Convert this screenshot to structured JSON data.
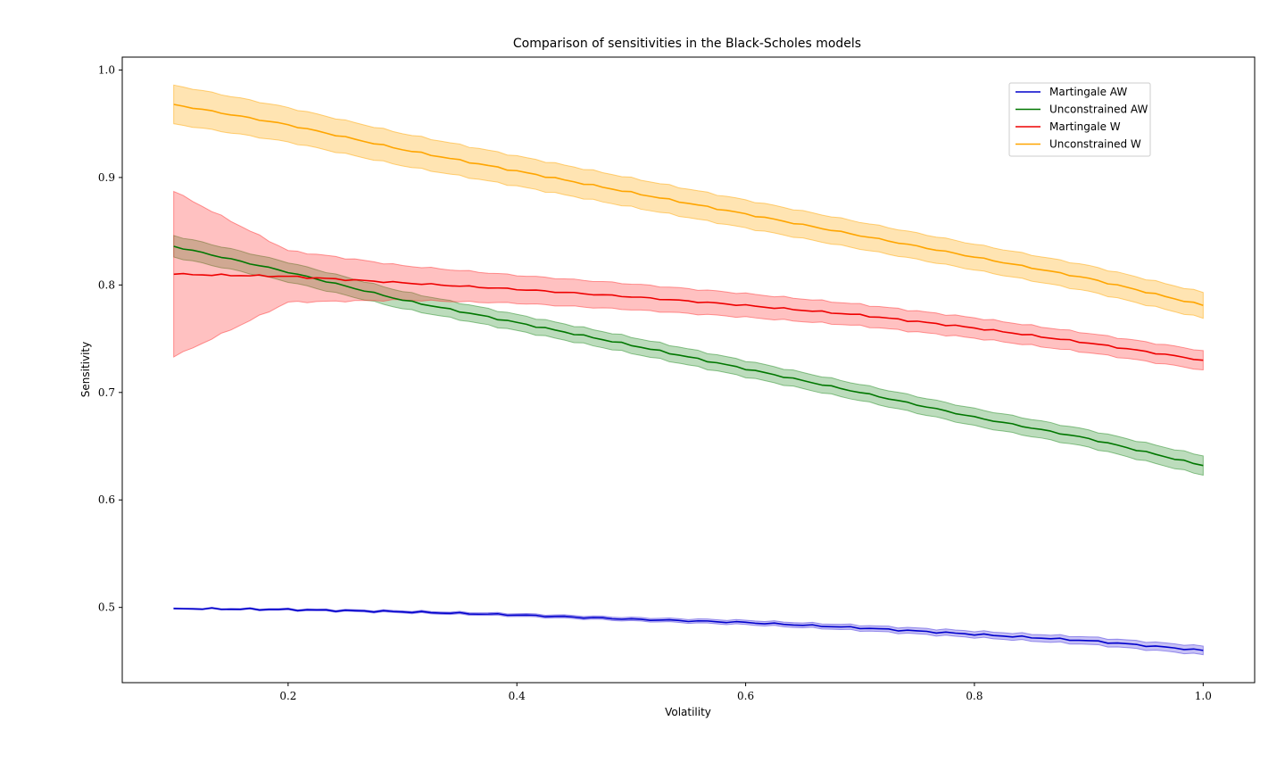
{
  "chart_data": {
    "type": "line",
    "title": "Comparison of sensitivities in the Black-Scholes models",
    "xlabel": "Volatility",
    "ylabel": "Sensitivity",
    "xlim": [
      0.055,
      1.045
    ],
    "ylim": [
      0.43,
      1.012
    ],
    "xticks": [
      "0.2",
      "0.4",
      "0.6",
      "0.8",
      "1.0"
    ],
    "yticks": [
      "0.5",
      "0.6",
      "0.7",
      "0.8",
      "0.9",
      "1.0"
    ],
    "grid": false,
    "legend_position": "top-right",
    "x": [
      0.1,
      0.2,
      0.3,
      0.4,
      0.5,
      0.6,
      0.7,
      0.8,
      0.9,
      1.0
    ],
    "series": [
      {
        "name": "Martingale AW",
        "color": "#0000cc",
        "band_color": "#4433dd",
        "values": [
          0.499,
          0.498,
          0.496,
          0.493,
          0.489,
          0.486,
          0.481,
          0.475,
          0.469,
          0.46
        ],
        "band_halfwidth": [
          0.0005,
          0.0008,
          0.001,
          0.0013,
          0.0016,
          0.002,
          0.0025,
          0.003,
          0.0035,
          0.004
        ]
      },
      {
        "name": "Unconstrained AW",
        "color": "#007700",
        "band_color": "#228b22",
        "values": [
          0.836,
          0.812,
          0.786,
          0.765,
          0.744,
          0.722,
          0.7,
          0.677,
          0.657,
          0.632
        ],
        "band_halfwidth": [
          0.01,
          0.009,
          0.008,
          0.0075,
          0.0075,
          0.0075,
          0.0075,
          0.008,
          0.008,
          0.009
        ]
      },
      {
        "name": "Martingale W",
        "color": "#ee0000",
        "band_color": "#ff3333",
        "values": [
          0.81,
          0.808,
          0.802,
          0.796,
          0.789,
          0.781,
          0.772,
          0.76,
          0.746,
          0.73
        ],
        "band_halfwidth": [
          0.077,
          0.024,
          0.016,
          0.013,
          0.012,
          0.011,
          0.01,
          0.0095,
          0.009,
          0.009
        ]
      },
      {
        "name": "Unconstrained W",
        "color": "#ffa500",
        "band_color": "#ffa500",
        "values": [
          0.968,
          0.949,
          0.926,
          0.906,
          0.886,
          0.866,
          0.846,
          0.826,
          0.806,
          0.781
        ],
        "band_halfwidth": [
          0.018,
          0.016,
          0.015,
          0.014,
          0.0135,
          0.013,
          0.0125,
          0.012,
          0.012,
          0.012
        ]
      }
    ]
  }
}
